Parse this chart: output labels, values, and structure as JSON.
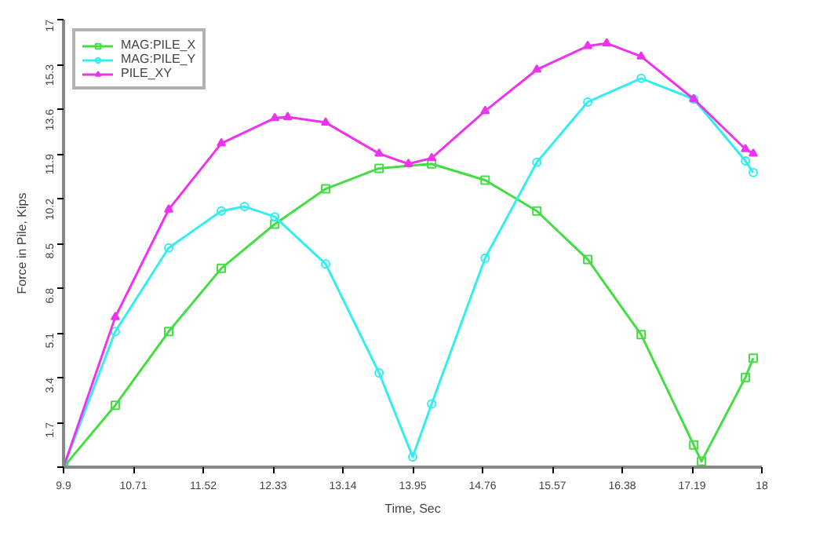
{
  "chart_data": {
    "type": "line",
    "xlabel": "Time, Sec",
    "ylabel": "Force in Pile, Kips",
    "xlim": [
      9.9,
      18
    ],
    "ylim": [
      0,
      17
    ],
    "xticks": [
      9.9,
      10.71,
      11.52,
      12.33,
      13.14,
      13.95,
      14.76,
      15.57,
      16.38,
      17.19,
      18
    ],
    "yticks": [
      {
        "value": 0,
        "label": null
      },
      1.7,
      3.4,
      5.1,
      6.8,
      8.5,
      10.2,
      11.9,
      13.6,
      15.3,
      17
    ],
    "grid": false,
    "legend": "top left",
    "line_style": "solid",
    "series": [
      {
        "name": "MAG:PILE_X",
        "color": "#44dd44",
        "marker": "square",
        "x": [
          9.9,
          10.5,
          11.12,
          11.73,
          12.35,
          12.94,
          13.56,
          14.17,
          14.79,
          15.39,
          15.98,
          16.6,
          17.21,
          17.3,
          17.81,
          17.9
        ],
        "values": [
          0,
          2.35,
          5.15,
          7.55,
          9.23,
          10.57,
          11.35,
          11.52,
          10.9,
          9.73,
          7.89,
          5.03,
          0.84,
          0.22,
          3.41,
          4.14
        ]
      },
      {
        "name": "MAG:PILE_Y",
        "color": "#33eeee",
        "marker": "circle",
        "x": [
          9.9,
          10.5,
          11.12,
          11.73,
          12.0,
          12.35,
          12.94,
          13.56,
          13.95,
          14.17,
          14.79,
          15.39,
          15.98,
          16.6,
          17.21,
          17.81,
          17.9
        ],
        "values": [
          0,
          5.15,
          8.33,
          9.73,
          9.9,
          9.51,
          7.72,
          3.58,
          0.39,
          2.4,
          7.94,
          11.58,
          13.87,
          14.77,
          13.98,
          11.63,
          11.19
        ]
      },
      {
        "name": "PILE_XY",
        "color": "#ee33ee",
        "marker": "triangle",
        "x": [
          9.9,
          10.5,
          11.12,
          11.73,
          12.35,
          12.5,
          12.94,
          13.56,
          13.9,
          14.17,
          14.79,
          15.39,
          15.98,
          16.2,
          16.6,
          17.21,
          17.81,
          17.9
        ],
        "values": [
          0,
          5.7,
          9.79,
          12.3,
          13.26,
          13.3,
          13.09,
          11.91,
          11.52,
          11.74,
          13.53,
          15.1,
          16.0,
          16.1,
          15.6,
          13.98,
          12.08,
          11.91
        ]
      }
    ]
  }
}
